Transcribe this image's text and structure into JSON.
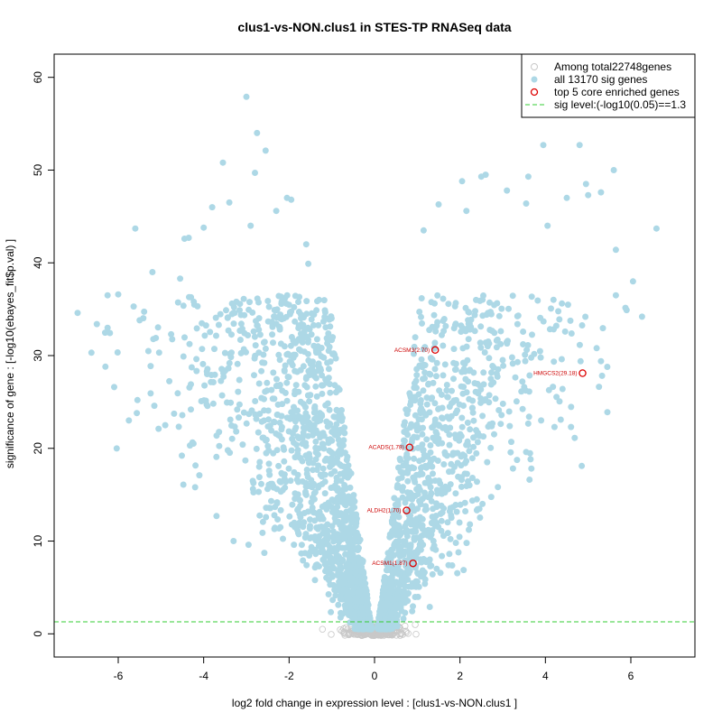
{
  "chart_data": {
    "type": "scatter",
    "title": "clus1-vs-NON.clus1 in STES-TP RNASeq data",
    "xlabel": "log2 fold change in expression level : [clus1-vs-NON.clus1 ]",
    "ylabel": "significance of gene : [-log10(ebayes_fit$p.val) ]",
    "xlim": [
      -7.5,
      7.5
    ],
    "ylim": [
      -2.5,
      62.5
    ],
    "x_ticks": [
      -6,
      -4,
      -2,
      0,
      2,
      4,
      6
    ],
    "y_ticks": [
      0,
      10,
      20,
      30,
      40,
      50,
      60
    ],
    "sig_threshold": 1.3,
    "legend": {
      "position": "top-right",
      "entries": [
        {
          "label": "Among total22748genes",
          "marker": "open-circle",
          "color": "#c8c8c8"
        },
        {
          "label": "all 13170 sig genes",
          "marker": "filled-circle",
          "color": "#add8e6"
        },
        {
          "label": "top 5 core enriched genes",
          "marker": "open-circle",
          "color": "#dd0000"
        },
        {
          "label": "sig level:(-log10(0.05)==1.3",
          "marker": "dashed-line",
          "color": "#33cc33"
        }
      ]
    },
    "highlighted_genes": [
      {
        "label": "ACSM3(2.70)",
        "x": 1.42,
        "y": 30.6
      },
      {
        "label": "HMGCS2(29.18)",
        "x": 4.87,
        "y": 28.1
      },
      {
        "label": "ACADS(1.78)",
        "x": 0.82,
        "y": 20.1
      },
      {
        "label": "ALDH2(1.70)",
        "x": 0.75,
        "y": 13.3
      },
      {
        "label": "ACSM1(1.87)",
        "x": 0.9,
        "y": 7.6
      }
    ],
    "sig_points_sample": [
      [
        -6.95,
        34.6
      ],
      [
        -6.3,
        28.8
      ],
      [
        -6.25,
        33.0
      ],
      [
        -6.25,
        36.5
      ],
      [
        -6.0,
        36.6
      ],
      [
        -5.75,
        23.0
      ],
      [
        -5.6,
        43.7
      ],
      [
        -5.55,
        25.2
      ],
      [
        -5.5,
        33.8
      ],
      [
        -5.2,
        39.0
      ],
      [
        -4.9,
        22.5
      ],
      [
        -4.55,
        38.3
      ],
      [
        -4.45,
        42.6
      ],
      [
        -4.35,
        42.7
      ],
      [
        -4.3,
        26.9
      ],
      [
        -4.2,
        15.8
      ],
      [
        -4.1,
        17.1
      ],
      [
        -4.0,
        43.8
      ],
      [
        -3.8,
        46.0
      ],
      [
        -3.7,
        12.7
      ],
      [
        -3.55,
        50.8
      ],
      [
        -3.4,
        46.5
      ],
      [
        -3.3,
        10.0
      ],
      [
        -3.0,
        57.9
      ],
      [
        -2.95,
        9.6
      ],
      [
        -2.9,
        44.0
      ],
      [
        -2.8,
        49.7
      ],
      [
        -2.75,
        54.0
      ],
      [
        -2.55,
        52.1
      ],
      [
        -2.3,
        45.6
      ],
      [
        -2.05,
        47.0
      ],
      [
        -1.95,
        46.8
      ],
      [
        -1.6,
        42.0
      ],
      [
        -1.55,
        39.9
      ],
      [
        -1.3,
        36.0
      ],
      [
        1.15,
        43.5
      ],
      [
        1.5,
        46.3
      ],
      [
        2.05,
        48.8
      ],
      [
        2.15,
        45.6
      ],
      [
        2.5,
        49.3
      ],
      [
        2.6,
        49.5
      ],
      [
        3.1,
        47.8
      ],
      [
        3.55,
        46.4
      ],
      [
        3.6,
        49.3
      ],
      [
        3.95,
        52.7
      ],
      [
        4.05,
        44.0
      ],
      [
        4.5,
        47.0
      ],
      [
        4.8,
        52.7
      ],
      [
        4.95,
        48.5
      ],
      [
        5.0,
        47.3
      ],
      [
        5.3,
        47.6
      ],
      [
        5.6,
        50.0
      ],
      [
        5.65,
        41.4
      ],
      [
        5.65,
        36.5
      ],
      [
        5.9,
        34.9
      ],
      [
        6.05,
        38.0
      ],
      [
        6.6,
        43.7
      ],
      [
        5.45,
        23.9
      ],
      [
        4.85,
        18.1
      ],
      [
        3.9,
        23.0
      ],
      [
        5.3,
        29.4
      ],
      [
        5.2,
        30.8
      ],
      [
        4.6,
        22.3
      ],
      [
        4.4,
        26.4
      ],
      [
        3.2,
        20.7
      ]
    ]
  }
}
